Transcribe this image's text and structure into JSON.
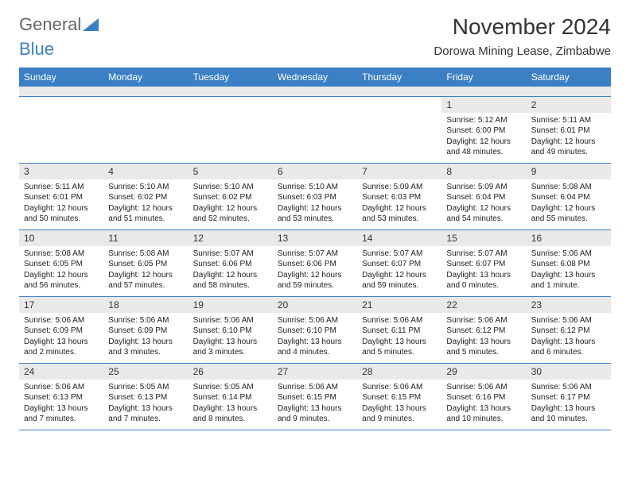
{
  "logo": {
    "text1": "General",
    "text2": "Blue"
  },
  "title": "November 2024",
  "location": "Dorowa Mining Lease, Zimbabwe",
  "colors": {
    "header_bg": "#3b7fc4",
    "header_text": "#ffffff",
    "daynum_bg": "#e9e9e9",
    "border": "#3b7fc4",
    "text": "#222222",
    "background": "#ffffff"
  },
  "fonts": {
    "title_size": 28,
    "location_size": 15,
    "dow_size": 12,
    "daynum_size": 12,
    "body_size": 10
  },
  "days_of_week": [
    "Sunday",
    "Monday",
    "Tuesday",
    "Wednesday",
    "Thursday",
    "Friday",
    "Saturday"
  ],
  "weeks": [
    [
      null,
      null,
      null,
      null,
      null,
      {
        "n": "1",
        "sunrise": "Sunrise: 5:12 AM",
        "sunset": "Sunset: 6:00 PM",
        "day1": "Daylight: 12 hours",
        "day2": "and 48 minutes."
      },
      {
        "n": "2",
        "sunrise": "Sunrise: 5:11 AM",
        "sunset": "Sunset: 6:01 PM",
        "day1": "Daylight: 12 hours",
        "day2": "and 49 minutes."
      }
    ],
    [
      {
        "n": "3",
        "sunrise": "Sunrise: 5:11 AM",
        "sunset": "Sunset: 6:01 PM",
        "day1": "Daylight: 12 hours",
        "day2": "and 50 minutes."
      },
      {
        "n": "4",
        "sunrise": "Sunrise: 5:10 AM",
        "sunset": "Sunset: 6:02 PM",
        "day1": "Daylight: 12 hours",
        "day2": "and 51 minutes."
      },
      {
        "n": "5",
        "sunrise": "Sunrise: 5:10 AM",
        "sunset": "Sunset: 6:02 PM",
        "day1": "Daylight: 12 hours",
        "day2": "and 52 minutes."
      },
      {
        "n": "6",
        "sunrise": "Sunrise: 5:10 AM",
        "sunset": "Sunset: 6:03 PM",
        "day1": "Daylight: 12 hours",
        "day2": "and 53 minutes."
      },
      {
        "n": "7",
        "sunrise": "Sunrise: 5:09 AM",
        "sunset": "Sunset: 6:03 PM",
        "day1": "Daylight: 12 hours",
        "day2": "and 53 minutes."
      },
      {
        "n": "8",
        "sunrise": "Sunrise: 5:09 AM",
        "sunset": "Sunset: 6:04 PM",
        "day1": "Daylight: 12 hours",
        "day2": "and 54 minutes."
      },
      {
        "n": "9",
        "sunrise": "Sunrise: 5:08 AM",
        "sunset": "Sunset: 6:04 PM",
        "day1": "Daylight: 12 hours",
        "day2": "and 55 minutes."
      }
    ],
    [
      {
        "n": "10",
        "sunrise": "Sunrise: 5:08 AM",
        "sunset": "Sunset: 6:05 PM",
        "day1": "Daylight: 12 hours",
        "day2": "and 56 minutes."
      },
      {
        "n": "11",
        "sunrise": "Sunrise: 5:08 AM",
        "sunset": "Sunset: 6:05 PM",
        "day1": "Daylight: 12 hours",
        "day2": "and 57 minutes."
      },
      {
        "n": "12",
        "sunrise": "Sunrise: 5:07 AM",
        "sunset": "Sunset: 6:06 PM",
        "day1": "Daylight: 12 hours",
        "day2": "and 58 minutes."
      },
      {
        "n": "13",
        "sunrise": "Sunrise: 5:07 AM",
        "sunset": "Sunset: 6:06 PM",
        "day1": "Daylight: 12 hours",
        "day2": "and 59 minutes."
      },
      {
        "n": "14",
        "sunrise": "Sunrise: 5:07 AM",
        "sunset": "Sunset: 6:07 PM",
        "day1": "Daylight: 12 hours",
        "day2": "and 59 minutes."
      },
      {
        "n": "15",
        "sunrise": "Sunrise: 5:07 AM",
        "sunset": "Sunset: 6:07 PM",
        "day1": "Daylight: 13 hours",
        "day2": "and 0 minutes."
      },
      {
        "n": "16",
        "sunrise": "Sunrise: 5:06 AM",
        "sunset": "Sunset: 6:08 PM",
        "day1": "Daylight: 13 hours",
        "day2": "and 1 minute."
      }
    ],
    [
      {
        "n": "17",
        "sunrise": "Sunrise: 5:06 AM",
        "sunset": "Sunset: 6:09 PM",
        "day1": "Daylight: 13 hours",
        "day2": "and 2 minutes."
      },
      {
        "n": "18",
        "sunrise": "Sunrise: 5:06 AM",
        "sunset": "Sunset: 6:09 PM",
        "day1": "Daylight: 13 hours",
        "day2": "and 3 minutes."
      },
      {
        "n": "19",
        "sunrise": "Sunrise: 5:06 AM",
        "sunset": "Sunset: 6:10 PM",
        "day1": "Daylight: 13 hours",
        "day2": "and 3 minutes."
      },
      {
        "n": "20",
        "sunrise": "Sunrise: 5:06 AM",
        "sunset": "Sunset: 6:10 PM",
        "day1": "Daylight: 13 hours",
        "day2": "and 4 minutes."
      },
      {
        "n": "21",
        "sunrise": "Sunrise: 5:06 AM",
        "sunset": "Sunset: 6:11 PM",
        "day1": "Daylight: 13 hours",
        "day2": "and 5 minutes."
      },
      {
        "n": "22",
        "sunrise": "Sunrise: 5:06 AM",
        "sunset": "Sunset: 6:12 PM",
        "day1": "Daylight: 13 hours",
        "day2": "and 5 minutes."
      },
      {
        "n": "23",
        "sunrise": "Sunrise: 5:06 AM",
        "sunset": "Sunset: 6:12 PM",
        "day1": "Daylight: 13 hours",
        "day2": "and 6 minutes."
      }
    ],
    [
      {
        "n": "24",
        "sunrise": "Sunrise: 5:06 AM",
        "sunset": "Sunset: 6:13 PM",
        "day1": "Daylight: 13 hours",
        "day2": "and 7 minutes."
      },
      {
        "n": "25",
        "sunrise": "Sunrise: 5:05 AM",
        "sunset": "Sunset: 6:13 PM",
        "day1": "Daylight: 13 hours",
        "day2": "and 7 minutes."
      },
      {
        "n": "26",
        "sunrise": "Sunrise: 5:05 AM",
        "sunset": "Sunset: 6:14 PM",
        "day1": "Daylight: 13 hours",
        "day2": "and 8 minutes."
      },
      {
        "n": "27",
        "sunrise": "Sunrise: 5:06 AM",
        "sunset": "Sunset: 6:15 PM",
        "day1": "Daylight: 13 hours",
        "day2": "and 9 minutes."
      },
      {
        "n": "28",
        "sunrise": "Sunrise: 5:06 AM",
        "sunset": "Sunset: 6:15 PM",
        "day1": "Daylight: 13 hours",
        "day2": "and 9 minutes."
      },
      {
        "n": "29",
        "sunrise": "Sunrise: 5:06 AM",
        "sunset": "Sunset: 6:16 PM",
        "day1": "Daylight: 13 hours",
        "day2": "and 10 minutes."
      },
      {
        "n": "30",
        "sunrise": "Sunrise: 5:06 AM",
        "sunset": "Sunset: 6:17 PM",
        "day1": "Daylight: 13 hours",
        "day2": "and 10 minutes."
      }
    ]
  ]
}
